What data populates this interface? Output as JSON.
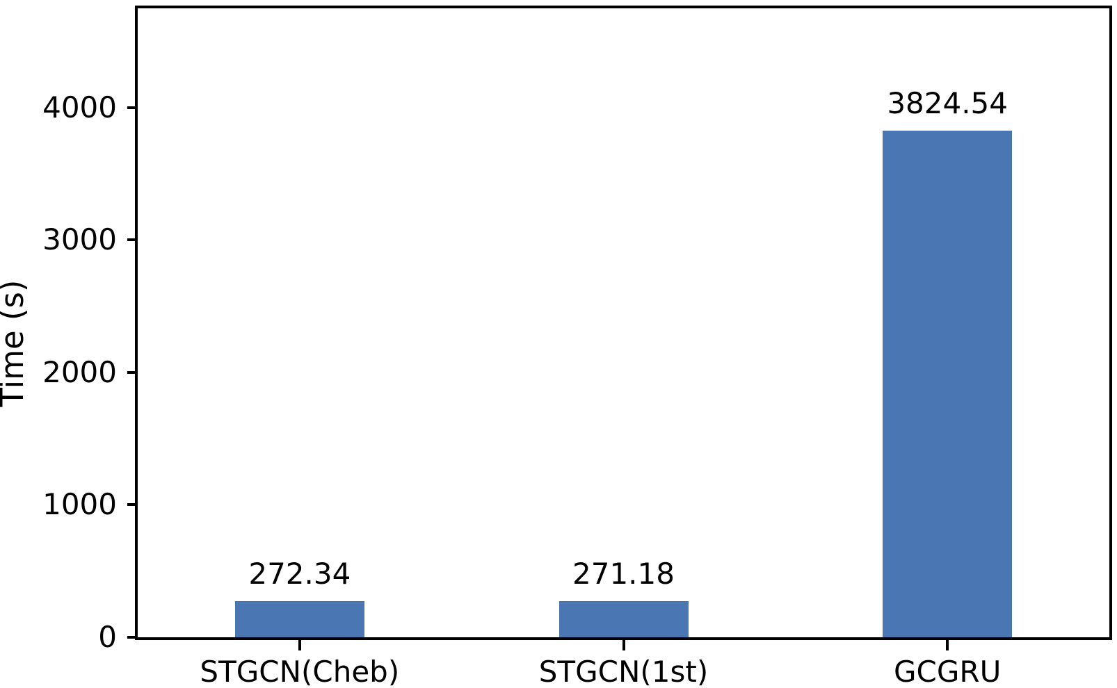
{
  "chart_data": {
    "type": "bar",
    "categories": [
      "STGCN(Cheb)",
      "STGCN(1st)",
      "GCGRU"
    ],
    "values": [
      272.34,
      271.18,
      3824.54
    ],
    "value_labels": [
      "272.34",
      "271.18",
      "3824.54"
    ],
    "title": "",
    "xlabel": "",
    "ylabel": "Time (s)",
    "ylim": [
      0,
      4750
    ],
    "yticks": [
      0,
      1000,
      2000,
      3000,
      4000
    ],
    "ytick_labels": [
      "0",
      "1000",
      "2000",
      "3000",
      "4000"
    ],
    "bar_color": "#4A77B4",
    "spine_color": "#000000",
    "text_color": "#000000",
    "grid": false,
    "legend": null,
    "bar_width_fraction": 0.4
  }
}
